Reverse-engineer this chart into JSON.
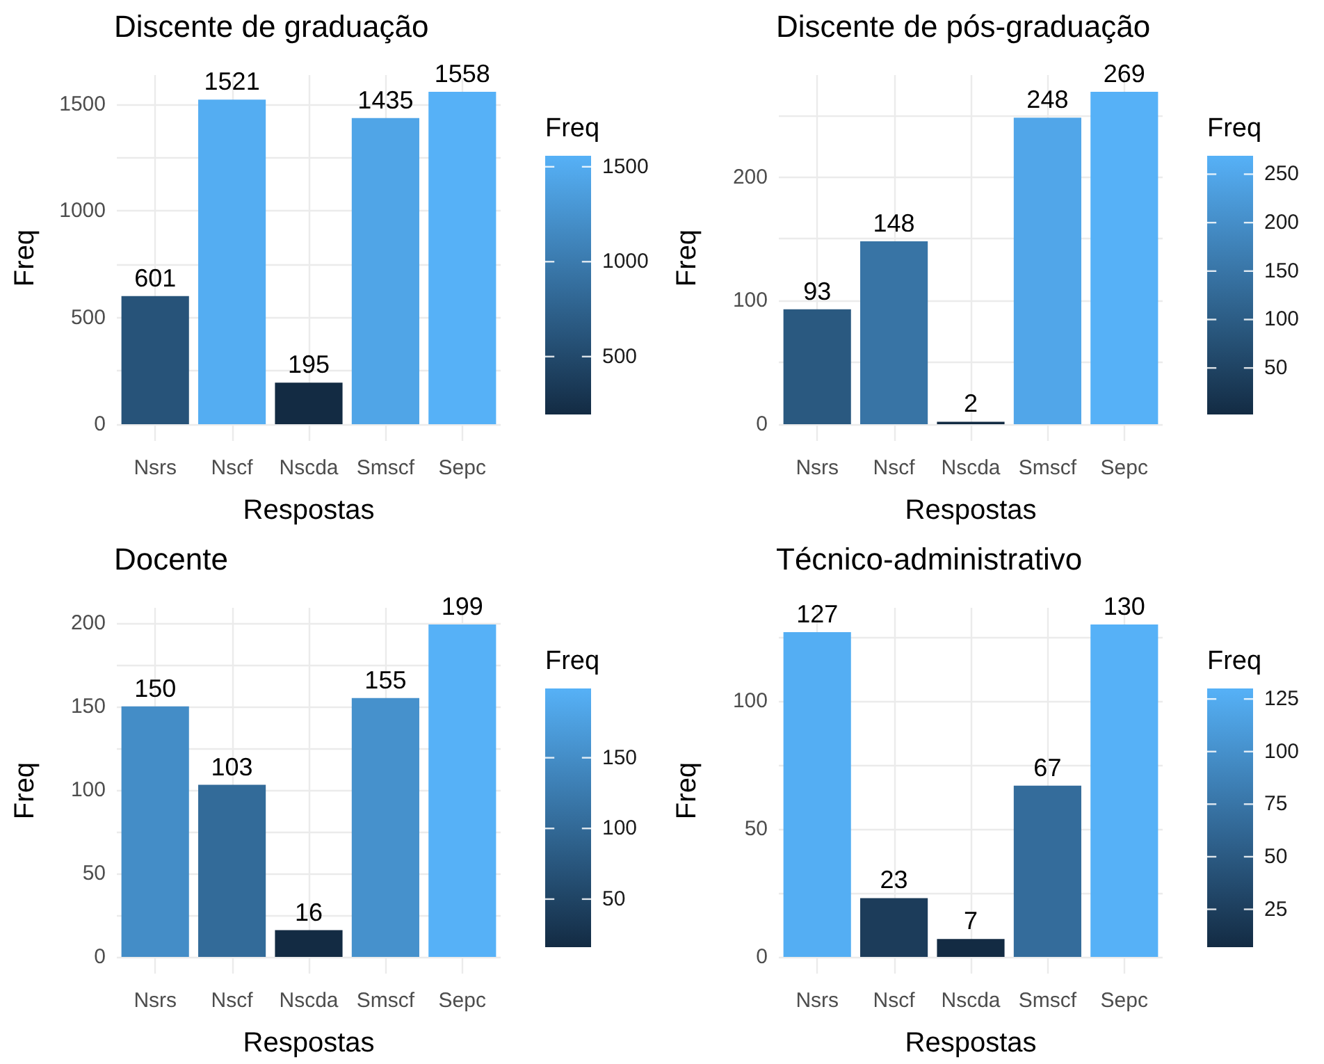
{
  "chart_data": [
    {
      "type": "bar",
      "title": "Discente de graduação",
      "xlabel": "Respostas",
      "ylabel": "Freq",
      "clabel": "Freq",
      "categories": [
        "Nsrs",
        "Nscf",
        "Nscda",
        "Smscf",
        "Sepc"
      ],
      "values": [
        601,
        1521,
        195,
        1435,
        1558
      ],
      "colors": [
        "#275379",
        "#54adf2",
        "#132b43",
        "#50a5e7",
        "#56b1f7"
      ],
      "ylim": [
        -78,
        1636
      ],
      "yticks": [
        0,
        {
          "value": 250,
          "label": null
        },
        500,
        {
          "value": 750,
          "label": null
        },
        1000,
        {
          "value": 1250,
          "label": null
        },
        1500
      ],
      "clim": [
        195,
        1558
      ],
      "cticks": [
        500,
        1000,
        1500
      ],
      "grid": true,
      "data_labels": true
    },
    {
      "type": "bar",
      "title": "Discente de pós-graduação",
      "xlabel": "Respostas",
      "ylabel": "Freq",
      "clabel": "Freq",
      "categories": [
        "Nsrs",
        "Nscf",
        "Nscda",
        "Smscf",
        "Sepc"
      ],
      "values": [
        93,
        148,
        2,
        248,
        269
      ],
      "colors": [
        "#2a5980",
        "#3874a5",
        "#132b43",
        "#51a6e9",
        "#56b1f7"
      ],
      "ylim": [
        -13.5,
        282.5
      ],
      "yticks": [
        0,
        {
          "value": 50,
          "label": null
        },
        100,
        {
          "value": 150,
          "label": null
        },
        200,
        {
          "value": 250,
          "label": null
        }
      ],
      "clim": [
        2,
        269
      ],
      "cticks": [
        50,
        100,
        150,
        200,
        250
      ],
      "grid": true,
      "data_labels": true
    },
    {
      "type": "bar",
      "title": "Docente",
      "xlabel": "Respostas",
      "ylabel": "Freq",
      "clabel": "Freq",
      "categories": [
        "Nsrs",
        "Nscf",
        "Nscda",
        "Smscf",
        "Sepc"
      ],
      "values": [
        150,
        103,
        16,
        155,
        199
      ],
      "colors": [
        "#448dc7",
        "#336b99",
        "#132b43",
        "#4691cc",
        "#56b1f7"
      ],
      "ylim": [
        -10,
        209
      ],
      "yticks": [
        0,
        {
          "value": 25,
          "label": null
        },
        50,
        {
          "value": 75,
          "label": null
        },
        100,
        {
          "value": 125,
          "label": null
        },
        150,
        {
          "value": 175,
          "label": null
        },
        200
      ],
      "clim": [
        16,
        199
      ],
      "cticks": [
        50,
        100,
        150
      ],
      "grid": true,
      "data_labels": true
    },
    {
      "type": "bar",
      "title": "Técnico-administrativo",
      "xlabel": "Respostas",
      "ylabel": "Freq",
      "clabel": "Freq",
      "categories": [
        "Nsrs",
        "Nscf",
        "Nscda",
        "Smscf",
        "Sepc"
      ],
      "values": [
        127,
        23,
        7,
        67,
        130
      ],
      "colors": [
        "#54aef3",
        "#1c3c5a",
        "#132b43",
        "#346c9b",
        "#56b1f7"
      ],
      "ylim": [
        -6.5,
        136.5
      ],
      "yticks": [
        0,
        {
          "value": 25,
          "label": null
        },
        50,
        {
          "value": 75,
          "label": null
        },
        100,
        {
          "value": 125,
          "label": null
        }
      ],
      "clim": [
        7,
        130
      ],
      "cticks": [
        25,
        50,
        75,
        100,
        125
      ],
      "grid": true,
      "data_labels": true
    }
  ]
}
